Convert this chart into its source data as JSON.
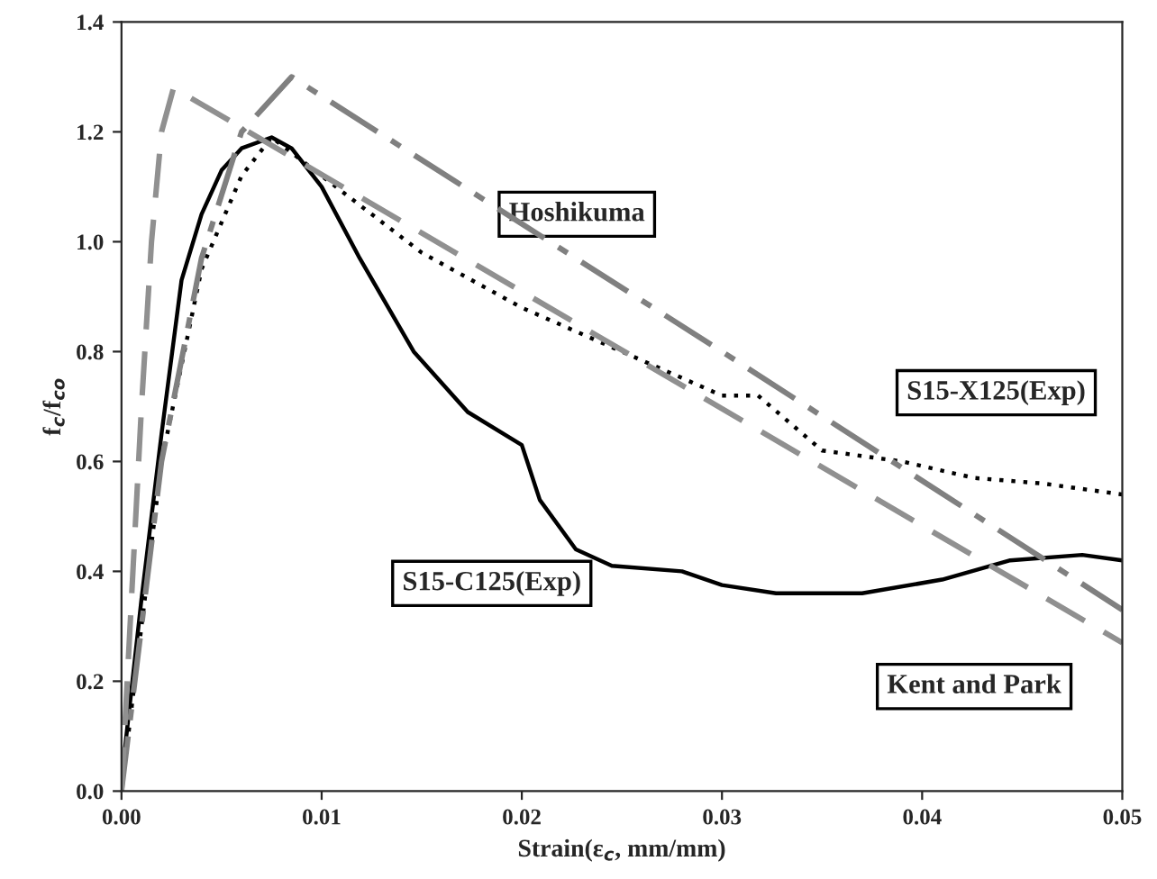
{
  "chart_data": {
    "type": "line",
    "xlabel": "Strain(ε$_{c}$, mm/mm)",
    "ylabel": "f$_{c}$/f$_{co}$",
    "xlim": [
      0,
      0.05
    ],
    "xticks": [
      {
        "value": 0,
        "label": "0.00"
      },
      0.01,
      0.02,
      0.03,
      0.04,
      0.05
    ],
    "ylim": [
      0,
      1.4
    ],
    "yticks": [
      {
        "value": 0,
        "label": "0.0"
      },
      0.2,
      0.4,
      0.6,
      0.8,
      {
        "value": 1,
        "label": "1.0"
      },
      1.2,
      1.4
    ],
    "grid": false,
    "marker": "none",
    "series": [
      {
        "color": "#000000",
        "line_style": "solid",
        "x": [
          0,
          0.001,
          0.002,
          0.003,
          0.004,
          0.005,
          0.006,
          0.0075,
          0.0085,
          0.01,
          0.0119,
          0.0146,
          0.0173,
          0.02,
          0.0209,
          0.0227,
          0.0245,
          0.028,
          0.03,
          0.0327,
          0.037,
          0.041,
          0.0444,
          0.048,
          0.05
        ],
        "values": [
          0.02,
          0.35,
          0.65,
          0.93,
          1.05,
          1.13,
          1.17,
          1.19,
          1.17,
          1.1,
          0.97,
          0.8,
          0.69,
          0.63,
          0.53,
          0.44,
          0.41,
          0.4,
          0.375,
          0.36,
          0.36,
          0.385,
          0.42,
          0.43,
          0.42
        ]
      },
      {
        "color": "#000000",
        "line_style": "dotted",
        "x": [
          0,
          0.002,
          0.004,
          0.006,
          0.0075,
          0.01,
          0.015,
          0.02,
          0.025,
          0.03,
          0.0318,
          0.035,
          0.039,
          0.0426,
          0.046,
          0.05
        ],
        "values": [
          0,
          0.6,
          0.95,
          1.12,
          1.19,
          1.12,
          0.98,
          0.88,
          0.8,
          0.72,
          0.72,
          0.62,
          0.6,
          0.57,
          0.56,
          0.54
        ]
      },
      {
        "color": "#808080",
        "line_style": "dashdot",
        "x": [
          0,
          0.002,
          0.004,
          0.006,
          0.0085,
          0.03,
          0.05
        ],
        "values": [
          0,
          0.6,
          0.97,
          1.2,
          1.3,
          0.8,
          0.33
        ]
      },
      {
        "color": "#909090",
        "line_style": "dashed",
        "x": [
          0,
          0.0005,
          0.001,
          0.0015,
          0.002,
          0.0026,
          0.05
        ],
        "values": [
          0,
          0.35,
          0.7,
          1.0,
          1.2,
          1.28,
          0.27
        ]
      }
    ],
    "annotations": [
      "Hoshikuma",
      "S15-X125(Exp)",
      "S15-C125(Exp)",
      "Kent and Park"
    ]
  }
}
